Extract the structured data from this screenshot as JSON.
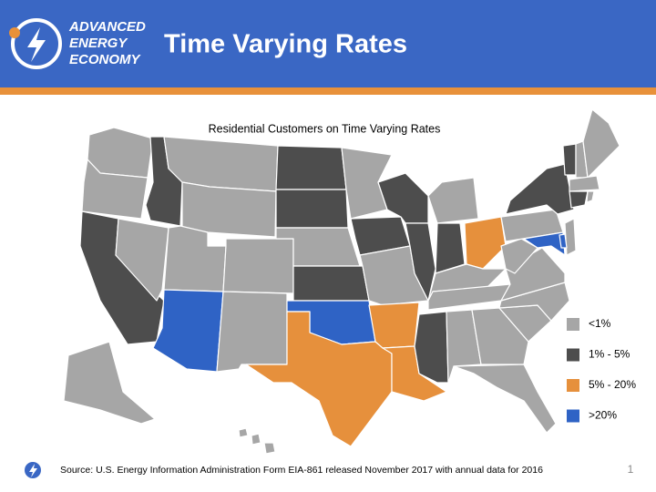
{
  "header": {
    "logo_lines": [
      "ADVANCED",
      "ENERGY",
      "ECONOMY"
    ],
    "title": "Time Varying Rates"
  },
  "map": {
    "title": "Residential Customers on Time Varying Rates",
    "legend": [
      {
        "label": "<1%",
        "color": "#a6a6a6"
      },
      {
        "label": "1% - 5%",
        "color": "#4d4d4d"
      },
      {
        "label": "5% - 20%",
        "color": "#e6903c"
      },
      {
        "label": ">20%",
        "color": "#2f63c5"
      }
    ]
  },
  "footer": {
    "source": "Source: U.S. Energy Information Administration Form EIA-861 released November 2017 with annual data for 2016",
    "page": "1"
  }
}
